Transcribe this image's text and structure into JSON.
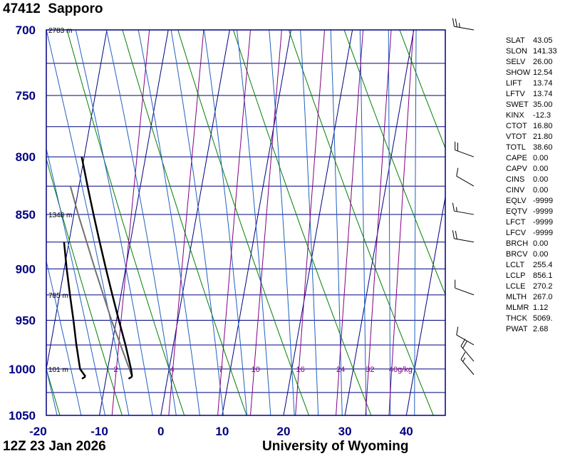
{
  "header": {
    "station_id": "47412",
    "station_name": "Sapporo"
  },
  "footer": {
    "time": "12Z 23 Jan 2026",
    "source": "University of Wyoming"
  },
  "colors": {
    "axis": "#000080",
    "grid": "#000080",
    "isotherm": "#000080",
    "dry_adiabat": "#008000",
    "moist_adiabat": "#2060c0",
    "mixing_ratio": "#800080",
    "temperature": "#000000",
    "dewpoint": "#000000",
    "parcel": "#707070"
  },
  "chart_data": {
    "type": "line",
    "subtype": "skew-t log-p",
    "x_range": [
      -20,
      45
    ],
    "p_range": [
      1050,
      700
    ],
    "y_scale": "log",
    "grid": true,
    "x_ticks": [
      "-20",
      "-10",
      "0",
      "10",
      "20",
      "30",
      "40"
    ],
    "p_ticks": [
      "700",
      "750",
      "800",
      "850",
      "900",
      "950",
      "1000",
      "1050"
    ],
    "isobars_minor": [
      725,
      775,
      825,
      875,
      925,
      975,
      1025
    ],
    "isotherm_values": [
      -110,
      -100,
      -90,
      -80,
      -70,
      -60,
      -50,
      -40,
      -30,
      -20,
      -10,
      0,
      10,
      20,
      30,
      40
    ],
    "dry_adiabat_thetas": [
      -30,
      -20,
      -10,
      0,
      10,
      20,
      30,
      40,
      50,
      60,
      70,
      80,
      90
    ],
    "moist_adiabat_starts": [
      -20,
      -16,
      -12,
      -8,
      -4,
      0,
      4,
      8,
      12,
      16,
      20,
      24,
      28,
      32,
      36,
      40
    ],
    "mixing_ratio_lines": [
      {
        "value": 2,
        "label": "2"
      },
      {
        "value": 4,
        "label": "4"
      },
      {
        "value": 7,
        "label": "7"
      },
      {
        "value": 10,
        "label": "10"
      },
      {
        "value": 16,
        "label": "16"
      },
      {
        "value": 24,
        "label": "24"
      },
      {
        "value": 32,
        "label": "32"
      },
      {
        "value": 40,
        "label": "40g/kg"
      }
    ],
    "height_labels": [
      {
        "p": 700,
        "text": "2783 m"
      },
      {
        "p": 850,
        "text": "1348 m"
      },
      {
        "p": 925,
        "text": "785 m"
      },
      {
        "p": 1000,
        "text": "101 m"
      }
    ],
    "temperature": [
      {
        "p": 1008,
        "t": -5.8
      },
      {
        "p": 1000,
        "t": -6.2
      },
      {
        "p": 975,
        "t": -7.8
      },
      {
        "p": 950,
        "t": -9.6
      },
      {
        "p": 925,
        "t": -11.4
      },
      {
        "p": 900,
        "t": -13.2
      },
      {
        "p": 875,
        "t": -15.0
      },
      {
        "p": 850,
        "t": -16.8
      },
      {
        "p": 825,
        "t": -18.6
      },
      {
        "p": 800,
        "t": -20.4
      }
    ],
    "dewpoint": [
      {
        "p": 1008,
        "t": -13.4
      },
      {
        "p": 1000,
        "t": -14.5
      },
      {
        "p": 975,
        "t": -15.8
      },
      {
        "p": 950,
        "t": -17.0
      },
      {
        "p": 925,
        "t": -18.3
      },
      {
        "p": 900,
        "t": -19.6
      },
      {
        "p": 875,
        "t": -20.8
      }
    ],
    "parcel": [
      {
        "p": 1008,
        "t": -5.8
      },
      {
        "p": 950,
        "t": -10.8
      },
      {
        "p": 900,
        "t": -15.0
      },
      {
        "p": 850,
        "t": -19.3
      },
      {
        "p": 825,
        "t": -21.4
      }
    ],
    "winds": [
      {
        "p": 1006,
        "dir": 320,
        "spd": 15
      },
      {
        "p": 992,
        "dir": 320,
        "spd": 20
      },
      {
        "p": 975,
        "dir": 300,
        "spd": 10
      },
      {
        "p": 925,
        "dir": 290,
        "spd": 10
      },
      {
        "p": 875,
        "dir": 280,
        "spd": 20
      },
      {
        "p": 850,
        "dir": 280,
        "spd": 15
      },
      {
        "p": 825,
        "dir": 300,
        "spd": 10
      },
      {
        "p": 800,
        "dir": 290,
        "spd": 20
      },
      {
        "p": 700,
        "dir": 280,
        "spd": 25
      }
    ]
  },
  "indices": [
    {
      "name": "SLAT",
      "value": "43.05"
    },
    {
      "name": "SLON",
      "value": "141.33"
    },
    {
      "name": "SELV",
      "value": "26.00"
    },
    {
      "name": "SHOW",
      "value": "12.54"
    },
    {
      "name": "LIFT",
      "value": "13.74"
    },
    {
      "name": "LFTV",
      "value": "13.74"
    },
    {
      "name": "SWET",
      "value": "35.00"
    },
    {
      "name": "KINX",
      "value": "-12.3"
    },
    {
      "name": "CTOT",
      "value": "16.80"
    },
    {
      "name": "VTOT",
      "value": "21.80"
    },
    {
      "name": "TOTL",
      "value": "38.60"
    },
    {
      "name": "CAPE",
      "value": "0.00"
    },
    {
      "name": "CAPV",
      "value": "0.00"
    },
    {
      "name": "CINS",
      "value": "0.00"
    },
    {
      "name": "CINV",
      "value": "0.00"
    },
    {
      "name": "EQLV",
      "value": "-9999"
    },
    {
      "name": "EQTV",
      "value": "-9999"
    },
    {
      "name": "LFCT",
      "value": "-9999"
    },
    {
      "name": "LFCV",
      "value": "-9999"
    },
    {
      "name": "BRCH",
      "value": "0.00"
    },
    {
      "name": "BRCV",
      "value": "0.00"
    },
    {
      "name": "LCLT",
      "value": "255.4"
    },
    {
      "name": "LCLP",
      "value": "856.1"
    },
    {
      "name": "LCLE",
      "value": "270.2"
    },
    {
      "name": "MLTH",
      "value": "267.0"
    },
    {
      "name": "MLMR",
      "value": "1.12"
    },
    {
      "name": "THCK",
      "value": "5069."
    },
    {
      "name": "PWAT",
      "value": "2.68"
    }
  ]
}
